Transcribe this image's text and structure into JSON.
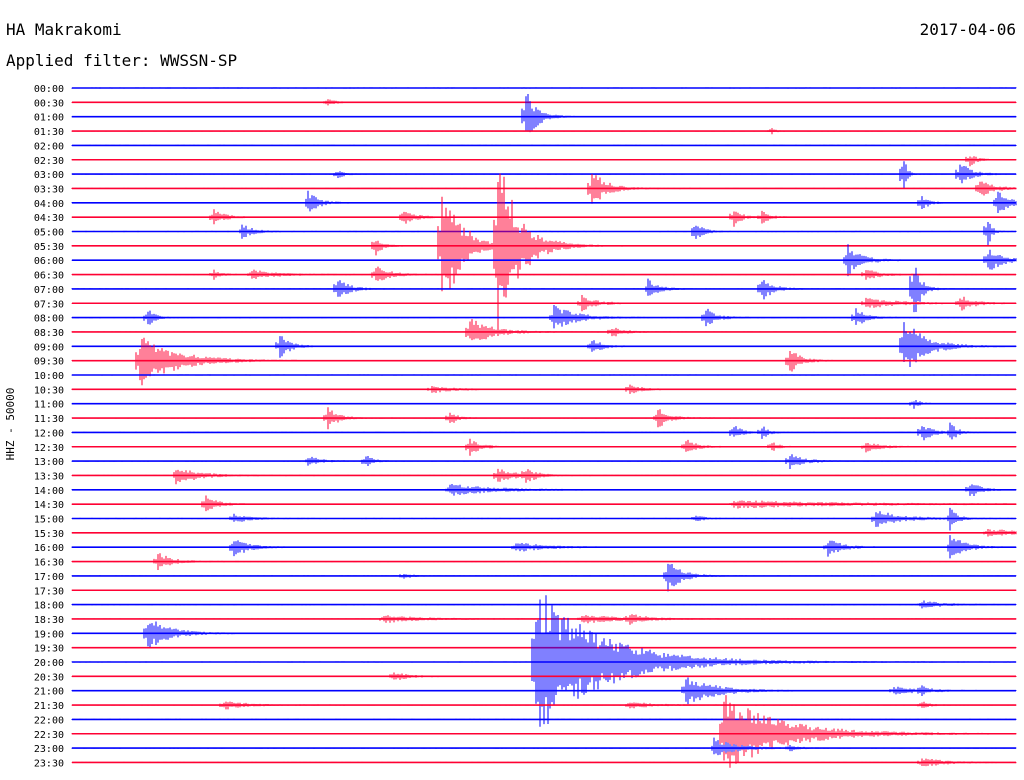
{
  "chart_data": {
    "type": "line",
    "title": "HA Makrakomi",
    "date": "2017-04-06",
    "subtitle": "Applied filter: WWSSN-SP",
    "ylabel": "HHZ - 50000",
    "series_colors": [
      "#0000ff",
      "#ff0033"
    ],
    "rows": [
      {
        "label": "00:00",
        "events": []
      },
      {
        "label": "00:30",
        "events": [
          {
            "x": 0.27,
            "amp": 4,
            "dur": 0.01
          }
        ]
      },
      {
        "label": "01:00",
        "events": [
          {
            "x": 0.48,
            "amp": 30,
            "dur": 0.015
          }
        ]
      },
      {
        "label": "01:30",
        "events": [
          {
            "x": 0.74,
            "amp": 4,
            "dur": 0.005
          }
        ]
      },
      {
        "label": "02:00",
        "events": []
      },
      {
        "label": "02:30",
        "events": [
          {
            "x": 0.95,
            "amp": 8,
            "dur": 0.01
          }
        ]
      },
      {
        "label": "03:00",
        "events": [
          {
            "x": 0.28,
            "amp": 5,
            "dur": 0.01
          },
          {
            "x": 0.88,
            "amp": 25,
            "dur": 0.005
          },
          {
            "x": 0.94,
            "amp": 14,
            "dur": 0.015
          }
        ]
      },
      {
        "label": "03:30",
        "events": [
          {
            "x": 0.55,
            "amp": 20,
            "dur": 0.02
          },
          {
            "x": 0.96,
            "amp": 10,
            "dur": 0.02
          }
        ]
      },
      {
        "label": "04:00",
        "events": [
          {
            "x": 0.25,
            "amp": 12,
            "dur": 0.015
          },
          {
            "x": 0.9,
            "amp": 8,
            "dur": 0.01
          },
          {
            "x": 0.98,
            "amp": 14,
            "dur": 0.015
          }
        ]
      },
      {
        "label": "04:30",
        "events": [
          {
            "x": 0.15,
            "amp": 8,
            "dur": 0.015
          },
          {
            "x": 0.35,
            "amp": 10,
            "dur": 0.015
          },
          {
            "x": 0.7,
            "amp": 12,
            "dur": 0.01
          },
          {
            "x": 0.73,
            "amp": 8,
            "dur": 0.01
          }
        ]
      },
      {
        "label": "05:00",
        "events": [
          {
            "x": 0.18,
            "amp": 8,
            "dur": 0.015
          },
          {
            "x": 0.66,
            "amp": 14,
            "dur": 0.01
          },
          {
            "x": 0.97,
            "amp": 20,
            "dur": 0.005
          }
        ]
      },
      {
        "label": "05:30",
        "events": [
          {
            "x": 0.39,
            "amp": 85,
            "dur": 0.025
          },
          {
            "x": 0.45,
            "amp": 95,
            "dur": 0.03
          },
          {
            "x": 0.32,
            "amp": 12,
            "dur": 0.01
          }
        ]
      },
      {
        "label": "06:00",
        "events": [
          {
            "x": 0.82,
            "amp": 18,
            "dur": 0.02
          },
          {
            "x": 0.97,
            "amp": 14,
            "dur": 0.02
          }
        ]
      },
      {
        "label": "06:30",
        "events": [
          {
            "x": 0.15,
            "amp": 6,
            "dur": 0.01
          },
          {
            "x": 0.19,
            "amp": 6,
            "dur": 0.03
          },
          {
            "x": 0.32,
            "amp": 10,
            "dur": 0.02
          },
          {
            "x": 0.84,
            "amp": 6,
            "dur": 0.02
          }
        ]
      },
      {
        "label": "07:00",
        "events": [
          {
            "x": 0.28,
            "amp": 14,
            "dur": 0.015
          },
          {
            "x": 0.61,
            "amp": 10,
            "dur": 0.015
          },
          {
            "x": 0.73,
            "amp": 14,
            "dur": 0.015
          },
          {
            "x": 0.89,
            "amp": 40,
            "dur": 0.01
          }
        ]
      },
      {
        "label": "07:30",
        "events": [
          {
            "x": 0.54,
            "amp": 8,
            "dur": 0.02
          },
          {
            "x": 0.84,
            "amp": 6,
            "dur": 0.04
          },
          {
            "x": 0.94,
            "amp": 8,
            "dur": 0.02
          }
        ]
      },
      {
        "label": "08:00",
        "events": [
          {
            "x": 0.08,
            "amp": 10,
            "dur": 0.01
          },
          {
            "x": 0.51,
            "amp": 14,
            "dur": 0.03
          },
          {
            "x": 0.67,
            "amp": 12,
            "dur": 0.015
          },
          {
            "x": 0.83,
            "amp": 10,
            "dur": 0.015
          }
        ]
      },
      {
        "label": "08:30",
        "events": [
          {
            "x": 0.42,
            "amp": 16,
            "dur": 0.03
          },
          {
            "x": 0.57,
            "amp": 8,
            "dur": 0.015
          }
        ]
      },
      {
        "label": "09:00",
        "events": [
          {
            "x": 0.22,
            "amp": 12,
            "dur": 0.015
          },
          {
            "x": 0.55,
            "amp": 8,
            "dur": 0.015
          },
          {
            "x": 0.88,
            "amp": 30,
            "dur": 0.03
          }
        ]
      },
      {
        "label": "09:30",
        "events": [
          {
            "x": 0.07,
            "amp": 28,
            "dur": 0.05
          },
          {
            "x": 0.76,
            "amp": 14,
            "dur": 0.015
          }
        ]
      },
      {
        "label": "10:00",
        "events": []
      },
      {
        "label": "10:30",
        "events": [
          {
            "x": 0.59,
            "amp": 6,
            "dur": 0.015
          },
          {
            "x": 0.38,
            "amp": 4,
            "dur": 0.03
          }
        ]
      },
      {
        "label": "11:00",
        "events": [
          {
            "x": 0.89,
            "amp": 6,
            "dur": 0.01
          }
        ]
      },
      {
        "label": "11:30",
        "events": [
          {
            "x": 0.27,
            "amp": 12,
            "dur": 0.015
          },
          {
            "x": 0.4,
            "amp": 8,
            "dur": 0.01
          },
          {
            "x": 0.62,
            "amp": 12,
            "dur": 0.015
          }
        ]
      },
      {
        "label": "12:00",
        "events": [
          {
            "x": 0.7,
            "amp": 10,
            "dur": 0.01
          },
          {
            "x": 0.73,
            "amp": 8,
            "dur": 0.01
          },
          {
            "x": 0.9,
            "amp": 10,
            "dur": 0.015
          },
          {
            "x": 0.93,
            "amp": 10,
            "dur": 0.01
          }
        ]
      },
      {
        "label": "12:30",
        "events": [
          {
            "x": 0.42,
            "amp": 10,
            "dur": 0.015
          },
          {
            "x": 0.65,
            "amp": 8,
            "dur": 0.015
          },
          {
            "x": 0.74,
            "amp": 6,
            "dur": 0.01
          },
          {
            "x": 0.84,
            "amp": 6,
            "dur": 0.02
          }
        ]
      },
      {
        "label": "13:00",
        "events": [
          {
            "x": 0.25,
            "amp": 6,
            "dur": 0.015
          },
          {
            "x": 0.31,
            "amp": 8,
            "dur": 0.01
          },
          {
            "x": 0.76,
            "amp": 8,
            "dur": 0.02
          }
        ]
      },
      {
        "label": "13:30",
        "events": [
          {
            "x": 0.11,
            "amp": 10,
            "dur": 0.03
          },
          {
            "x": 0.45,
            "amp": 10,
            "dur": 0.02
          },
          {
            "x": 0.48,
            "amp": 8,
            "dur": 0.015
          }
        ]
      },
      {
        "label": "14:00",
        "events": [
          {
            "x": 0.4,
            "amp": 6,
            "dur": 0.06
          },
          {
            "x": 0.95,
            "amp": 10,
            "dur": 0.015
          }
        ]
      },
      {
        "label": "14:30",
        "events": [
          {
            "x": 0.14,
            "amp": 12,
            "dur": 0.015
          },
          {
            "x": 0.7,
            "amp": 4,
            "dur": 0.15
          }
        ]
      },
      {
        "label": "15:00",
        "events": [
          {
            "x": 0.17,
            "amp": 6,
            "dur": 0.02
          },
          {
            "x": 0.66,
            "amp": 5,
            "dur": 0.01
          },
          {
            "x": 0.85,
            "amp": 10,
            "dur": 0.035
          },
          {
            "x": 0.93,
            "amp": 12,
            "dur": 0.01
          }
        ]
      },
      {
        "label": "15:30",
        "events": [
          {
            "x": 0.97,
            "amp": 4,
            "dur": 0.05
          }
        ]
      },
      {
        "label": "16:00",
        "events": [
          {
            "x": 0.17,
            "amp": 12,
            "dur": 0.02
          },
          {
            "x": 0.47,
            "amp": 5,
            "dur": 0.04
          },
          {
            "x": 0.8,
            "amp": 10,
            "dur": 0.02
          },
          {
            "x": 0.93,
            "amp": 14,
            "dur": 0.02
          }
        ]
      },
      {
        "label": "16:30",
        "events": [
          {
            "x": 0.09,
            "amp": 10,
            "dur": 0.02
          }
        ]
      },
      {
        "label": "17:00",
        "events": [
          {
            "x": 0.63,
            "amp": 18,
            "dur": 0.02
          },
          {
            "x": 0.35,
            "amp": 4,
            "dur": 0.01
          }
        ]
      },
      {
        "label": "17:30",
        "events": []
      },
      {
        "label": "18:00",
        "events": [
          {
            "x": 0.9,
            "amp": 4,
            "dur": 0.03
          }
        ]
      },
      {
        "label": "18:30",
        "events": [
          {
            "x": 0.33,
            "amp": 4,
            "dur": 0.05
          },
          {
            "x": 0.54,
            "amp": 5,
            "dur": 0.05
          },
          {
            "x": 0.59,
            "amp": 5,
            "dur": 0.02
          }
        ]
      },
      {
        "label": "19:00",
        "events": [
          {
            "x": 0.08,
            "amp": 18,
            "dur": 0.03
          }
        ]
      },
      {
        "label": "19:30",
        "events": []
      },
      {
        "label": "20:00",
        "events": [
          {
            "x": 0.49,
            "amp": 80,
            "dur": 0.09
          }
        ]
      },
      {
        "label": "20:30",
        "events": [
          {
            "x": 0.34,
            "amp": 5,
            "dur": 0.02
          }
        ]
      },
      {
        "label": "21:00",
        "events": [
          {
            "x": 0.65,
            "amp": 16,
            "dur": 0.04
          },
          {
            "x": 0.87,
            "amp": 4,
            "dur": 0.04
          },
          {
            "x": 0.9,
            "amp": 5,
            "dur": 0.01
          }
        ]
      },
      {
        "label": "21:30",
        "events": [
          {
            "x": 0.16,
            "amp": 5,
            "dur": 0.03
          },
          {
            "x": 0.59,
            "amp": 4,
            "dur": 0.03
          },
          {
            "x": 0.9,
            "amp": 4,
            "dur": 0.01
          }
        ]
      },
      {
        "label": "22:00",
        "events": []
      },
      {
        "label": "22:30",
        "events": [
          {
            "x": 0.69,
            "amp": 40,
            "dur": 0.08
          }
        ]
      },
      {
        "label": "23:00",
        "events": [
          {
            "x": 0.68,
            "amp": 10,
            "dur": 0.03
          },
          {
            "x": 0.76,
            "amp": 4,
            "dur": 0.01
          }
        ]
      },
      {
        "label": "23:30",
        "events": [
          {
            "x": 0.9,
            "amp": 5,
            "dur": 0.03
          }
        ]
      }
    ]
  }
}
